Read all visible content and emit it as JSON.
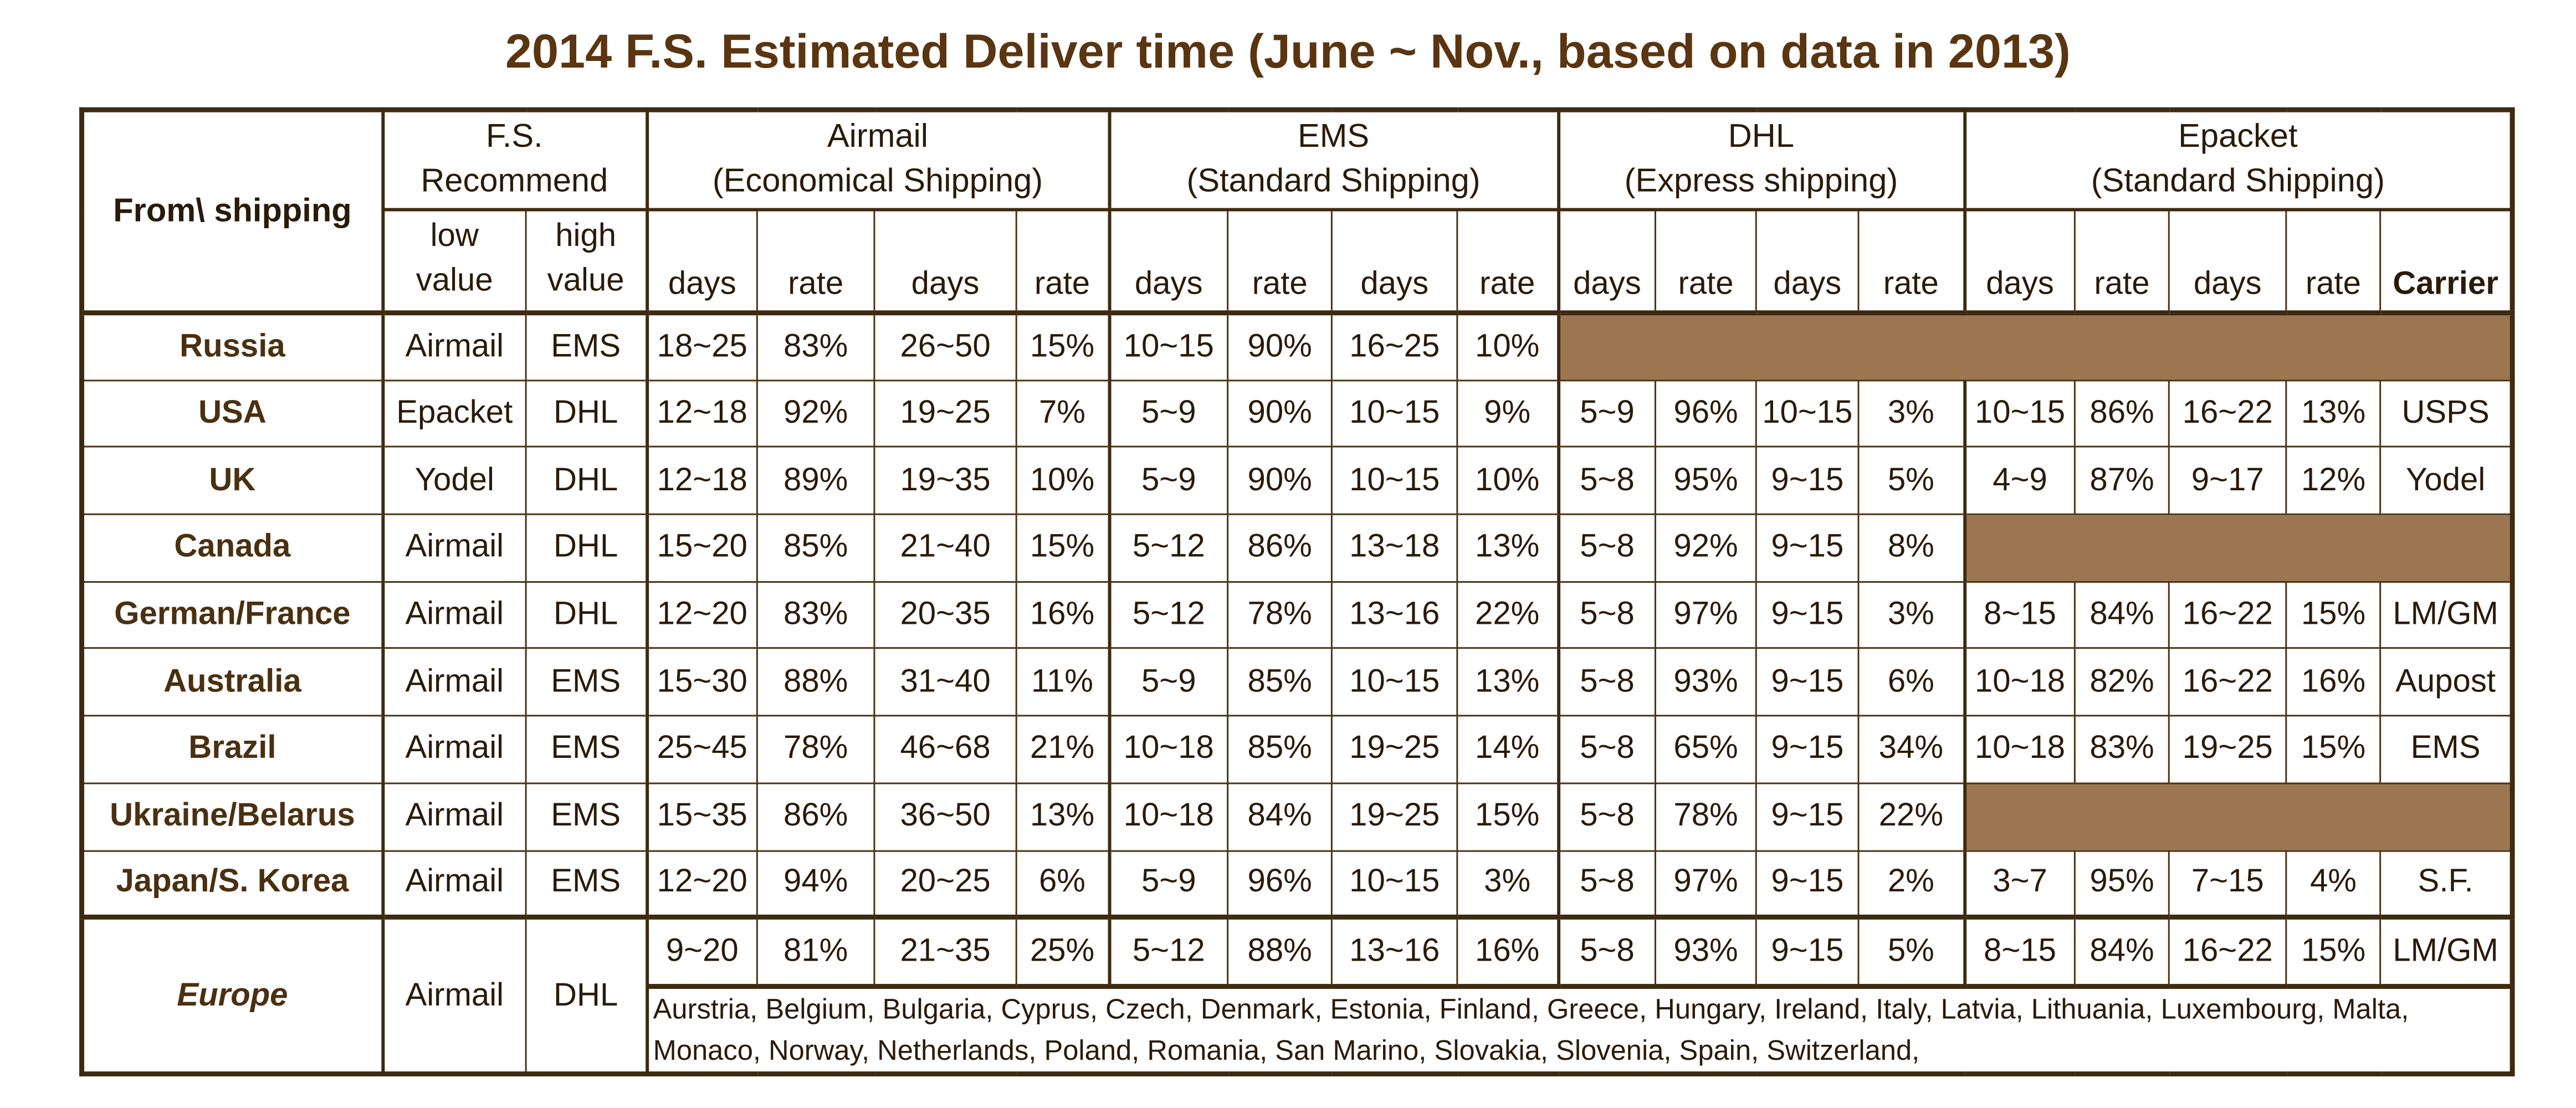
{
  "title": "2014 F.S. Estimated Deliver time (June ~ Nov., based on data in 2013)",
  "header": {
    "from": "From\\ shipping",
    "fs": {
      "line1": "F.S.",
      "line2": "Recommend",
      "low": [
        "low",
        "value"
      ],
      "high": [
        "high",
        "value"
      ]
    },
    "airmail": {
      "line1": "Airmail",
      "line2": "(Economical Shipping)"
    },
    "ems": {
      "line1": "EMS",
      "line2": "(Standard Shipping)"
    },
    "dhl": {
      "line1": "DHL",
      "line2": "(Express shipping)"
    },
    "epacket": {
      "line1": "Epacket",
      "line2": "(Standard Shipping)"
    },
    "days": "days",
    "rate": "rate",
    "carrier": "Carrier"
  },
  "fill_color": "#9b7650",
  "rows": [
    {
      "country": "Russia",
      "low": "Airmail",
      "high": "EMS",
      "airmail": [
        "18~25",
        "83%",
        "26~50",
        "15%"
      ],
      "ems": [
        "10~15",
        "90%",
        "16~25",
        "10%"
      ],
      "dhl": null,
      "epacket": null
    },
    {
      "country": "USA",
      "low": "Epacket",
      "high": "DHL",
      "airmail": [
        "12~18",
        "92%",
        "19~25",
        "7%"
      ],
      "ems": [
        "5~9",
        "90%",
        "10~15",
        "9%"
      ],
      "dhl": [
        "5~9",
        "96%",
        "10~15",
        "3%"
      ],
      "epacket": [
        "10~15",
        "86%",
        "16~22",
        "13%",
        "USPS"
      ]
    },
    {
      "country": "UK",
      "low": "Yodel",
      "high": "DHL",
      "airmail": [
        "12~18",
        "89%",
        "19~35",
        "10%"
      ],
      "ems": [
        "5~9",
        "90%",
        "10~15",
        "10%"
      ],
      "dhl": [
        "5~8",
        "95%",
        "9~15",
        "5%"
      ],
      "epacket": [
        "4~9",
        "87%",
        "9~17",
        "12%",
        "Yodel"
      ]
    },
    {
      "country": "Canada",
      "low": "Airmail",
      "high": "DHL",
      "airmail": [
        "15~20",
        "85%",
        "21~40",
        "15%"
      ],
      "ems": [
        "5~12",
        "86%",
        "13~18",
        "13%"
      ],
      "dhl": [
        "5~8",
        "92%",
        "9~15",
        "8%"
      ],
      "epacket": null
    },
    {
      "country": "German/France",
      "low": "Airmail",
      "high": "DHL",
      "airmail": [
        "12~20",
        "83%",
        "20~35",
        "16%"
      ],
      "ems": [
        "5~12",
        "78%",
        "13~16",
        "22%"
      ],
      "dhl": [
        "5~8",
        "97%",
        "9~15",
        "3%"
      ],
      "epacket": [
        "8~15",
        "84%",
        "16~22",
        "15%",
        "LM/GM"
      ]
    },
    {
      "country": "Australia",
      "low": "Airmail",
      "high": "EMS",
      "airmail": [
        "15~30",
        "88%",
        "31~40",
        "11%"
      ],
      "ems": [
        "5~9",
        "85%",
        "10~15",
        "13%"
      ],
      "dhl": [
        "5~8",
        "93%",
        "9~15",
        "6%"
      ],
      "epacket": [
        "10~18",
        "82%",
        "16~22",
        "16%",
        "Aupost"
      ]
    },
    {
      "country": "Brazil",
      "low": "Airmail",
      "high": "EMS",
      "airmail": [
        "25~45",
        "78%",
        "46~68",
        "21%"
      ],
      "ems": [
        "10~18",
        "85%",
        "19~25",
        "14%"
      ],
      "dhl": [
        "5~8",
        "65%",
        "9~15",
        "34%"
      ],
      "epacket": [
        "10~18",
        "83%",
        "19~25",
        "15%",
        "EMS"
      ]
    },
    {
      "country": "Ukraine/Belarus",
      "low": "Airmail",
      "high": "EMS",
      "airmail": [
        "15~35",
        "86%",
        "36~50",
        "13%"
      ],
      "ems": [
        "10~18",
        "84%",
        "19~25",
        "15%"
      ],
      "dhl": [
        "5~8",
        "78%",
        "9~15",
        "22%"
      ],
      "epacket": null
    },
    {
      "country": "Japan/S. Korea",
      "low": "Airmail",
      "high": "EMS",
      "airmail": [
        "12~20",
        "94%",
        "20~25",
        "6%"
      ],
      "ems": [
        "5~9",
        "96%",
        "10~15",
        "3%"
      ],
      "dhl": [
        "5~8",
        "97%",
        "9~15",
        "2%"
      ],
      "epacket": [
        "3~7",
        "95%",
        "7~15",
        "4%",
        "S.F."
      ]
    }
  ],
  "europe": {
    "country": "Europe",
    "low": "Airmail",
    "high": "DHL",
    "airmail": [
      "9~20",
      "81%",
      "21~35",
      "25%"
    ],
    "ems": [
      "5~12",
      "88%",
      "13~16",
      "16%"
    ],
    "dhl": [
      "5~8",
      "93%",
      "9~15",
      "5%"
    ],
    "epacket": [
      "8~15",
      "84%",
      "16~22",
      "15%",
      "LM/GM"
    ],
    "countries": "Aurstria, Belgium, Bulgaria, Cyprus, Czech, Denmark, Estonia, Finland, Greece, Hungary, Ireland, Italy, Latvia, Lithuania, Luxembourg, Malta, Monaco, Norway, Netherlands, Poland,  Romania, San Marino, Slovakia, Slovenia, Spain, Switzerland,"
  }
}
